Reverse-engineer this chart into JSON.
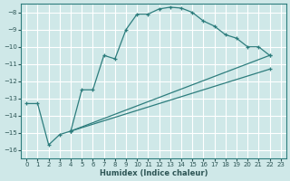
{
  "bg_color": "#cfe8e8",
  "grid_color": "#ffffff",
  "line_color": "#2d7d7d",
  "xlabel": "Humidex (Indice chaleur)",
  "xlim": [
    -0.5,
    23.5
  ],
  "ylim": [
    -16.5,
    -7.5
  ],
  "yticks": [
    -16,
    -15,
    -14,
    -13,
    -12,
    -11,
    -10,
    -9,
    -8
  ],
  "xticks": [
    0,
    1,
    2,
    3,
    4,
    5,
    6,
    7,
    8,
    9,
    10,
    11,
    12,
    13,
    14,
    15,
    16,
    17,
    18,
    19,
    20,
    21,
    22,
    23
  ],
  "line1_x": [
    0,
    1,
    2,
    3,
    4,
    5,
    6,
    7,
    8,
    9,
    10,
    11,
    12,
    13,
    14,
    15,
    16,
    17,
    18,
    19,
    20,
    21,
    22
  ],
  "line1_y": [
    -13.3,
    -13.3,
    -15.7,
    -15.1,
    -14.9,
    -12.5,
    -12.5,
    -10.5,
    -10.7,
    -9.0,
    -8.1,
    -8.1,
    -7.8,
    -7.7,
    -7.75,
    -8.0,
    -8.5,
    -8.8,
    -9.3,
    -9.5,
    -10.0,
    -10.0,
    -10.5
  ],
  "line2_x": [
    4,
    22
  ],
  "line2_y": [
    -14.9,
    -10.5
  ],
  "line3_x": [
    4,
    22
  ],
  "line3_y": [
    -14.9,
    -11.3
  ],
  "marker": "+"
}
